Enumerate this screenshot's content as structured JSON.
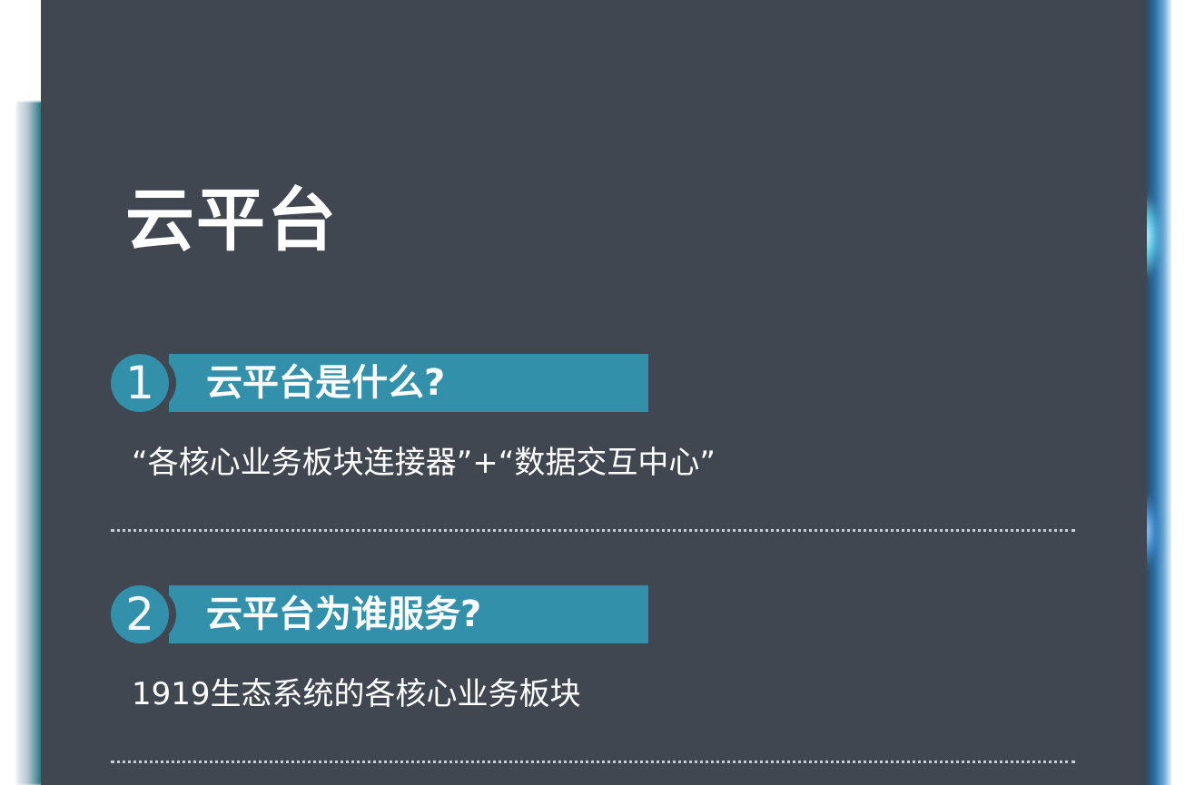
{
  "slide": {
    "title": "云平台",
    "sections": [
      {
        "number": "1",
        "heading": "云平台是什么?",
        "description": "“各核心业务板块连接器”+“数据交互中心”"
      },
      {
        "number": "2",
        "heading": "云平台为谁服务?",
        "description": "1919生态系统的各核心业务板块"
      }
    ]
  },
  "colors": {
    "panel_background": "#414751",
    "accent": "#3290ab",
    "text": "#ffffff",
    "divider": "#c9ced4"
  }
}
